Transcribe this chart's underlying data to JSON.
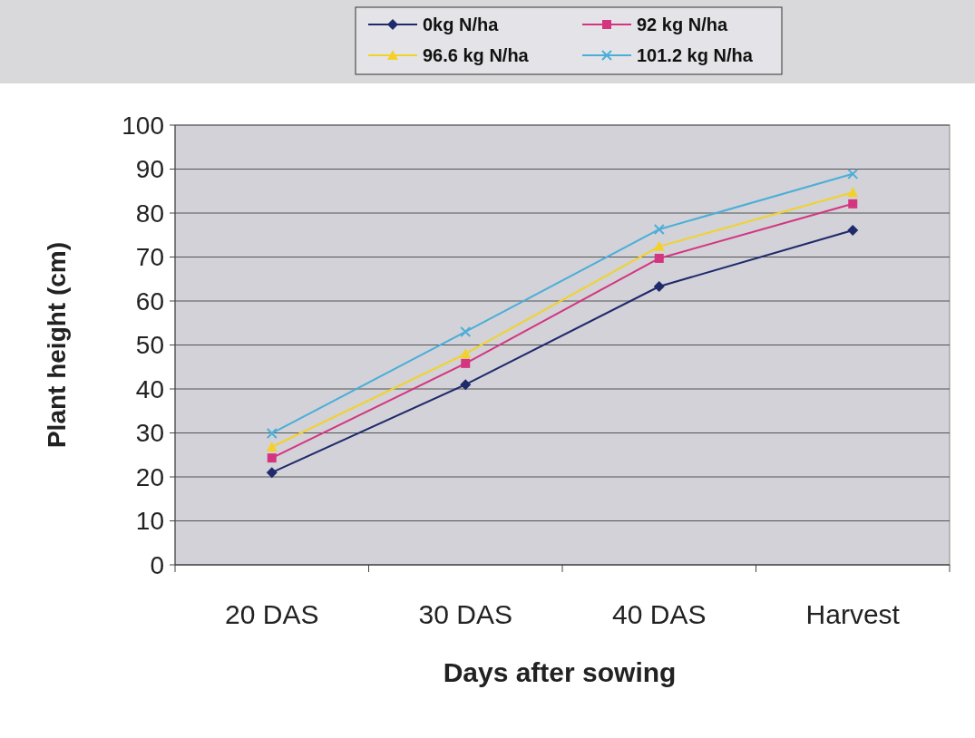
{
  "chart_data": {
    "type": "line",
    "xlabel": "Days after sowing",
    "ylabel": "Plant height (cm)",
    "categories": [
      "20 DAS",
      "30 DAS",
      "40 DAS",
      "Harvest"
    ],
    "series": [
      {
        "name": "0kg N/ha",
        "color": "#1f2a6b",
        "marker": "diamond",
        "values": [
          21,
          41,
          63.3,
          76.1
        ]
      },
      {
        "name": "92 kg N/ha",
        "color": "#d4357f",
        "marker": "square",
        "values": [
          24.3,
          45.8,
          69.7,
          82.1
        ]
      },
      {
        "name": "96.6 kg N/ha",
        "color": "#f2d22a",
        "marker": "triangle",
        "values": [
          26.8,
          48,
          72.4,
          84.7
        ]
      },
      {
        "name": "101.2 kg N/ha",
        "color": "#4aaed8",
        "marker": "cross",
        "values": [
          29.9,
          53,
          76.3,
          88.9
        ]
      }
    ],
    "ylim": [
      0,
      100
    ],
    "yticks": [
      0,
      10,
      20,
      30,
      40,
      50,
      60,
      70,
      80,
      90,
      100
    ],
    "grid": "y",
    "legend": "top"
  }
}
